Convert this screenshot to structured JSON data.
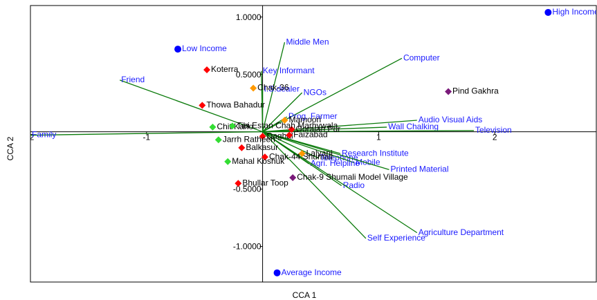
{
  "chart_data": {
    "type": "scatter",
    "x_label": "CCA 1",
    "y_label": "CCA 2",
    "xlim": [
      -2.0,
      2.875
    ],
    "ylim": [
      -1.31,
      1.1
    ],
    "xticks": [
      -2,
      -1,
      1,
      2
    ],
    "yticks": [
      {
        "value": 1,
        "label": "1.0000"
      },
      {
        "value": 0.5,
        "label": "0.5000"
      },
      {
        "value": -0.5,
        "label": "-0.5000"
      },
      {
        "value": -1,
        "label": "-1.0000"
      }
    ],
    "series": [
      {
        "color": "#0000ff",
        "marker": "circle",
        "label_color": "#1a1aff",
        "labels": [
          "High Income",
          "Low Income",
          "Average Income"
        ],
        "x": [
          2.46,
          -0.73,
          0.125
        ],
        "values": [
          1.04,
          0.72,
          -1.23
        ]
      },
      {
        "color": "#ff0000",
        "marker": "diamond",
        "label_color": "#000000",
        "labels": [
          "Koterra",
          "Thowa Bahadur",
          "Balkasur",
          "Bhullar Toop",
          "Chak-44 Shumali",
          "Goraiah Pur",
          "Daghal",
          "Faizabad"
        ],
        "x": [
          -0.48,
          -0.52,
          -0.18,
          -0.21,
          0.02,
          0.25,
          0.0,
          0.23
        ],
        "values": [
          0.54,
          0.23,
          -0.14,
          -0.45,
          -0.22,
          0.02,
          -0.04,
          -0.03
        ]
      },
      {
        "color": "#ff9900",
        "marker": "diamond",
        "label_color": "#000000",
        "labels": [
          "Chak-36",
          "Lalyani",
          "Mamoori"
        ],
        "x": [
          -0.08,
          0.34,
          0.19
        ],
        "values": [
          0.38,
          -0.19,
          0.1
        ]
      },
      {
        "color": "#33dd33",
        "marker": "diamond",
        "label_color": "#000000",
        "labels": [
          "Chit Karlo",
          "Tibi Estan Chah Marhywala",
          "Jarrh Ratheen",
          "Mahal Koshuk"
        ],
        "x": [
          -0.43,
          -0.26,
          -0.38,
          -0.3
        ],
        "values": [
          0.04,
          0.05,
          -0.07,
          -0.26
        ]
      },
      {
        "color": "#7a1a7a",
        "marker": "diamond",
        "label_color": "#000000",
        "labels": [
          "Pind Gakhra",
          "Chak-9 Shumali Model Village"
        ],
        "x": [
          1.6,
          0.26
        ],
        "values": [
          0.35,
          -0.4
        ]
      }
    ],
    "vectors": {
      "color": "#0a7a0a",
      "label_color": "#1a1aff",
      "labels": [
        "Family",
        "Friend",
        "Middle Men",
        "Key Informant",
        "I.S.dealer",
        "NGOs",
        "Computer",
        "Prog. Farmer",
        "Audio Visual Aids",
        "Wall Chalking",
        "Television",
        "Research Institute",
        "Telephone",
        "Mobile",
        "Printed Material",
        "Agri. Helpline",
        "Radio",
        "Agriculture Department",
        "Self Experience"
      ],
      "x": [
        -2.0,
        -1.23,
        0.19,
        -0.01,
        0.0,
        0.34,
        1.2,
        0.21,
        1.33,
        1.07,
        1.82,
        0.67,
        0.48,
        0.79,
        1.09,
        0.4,
        0.68,
        1.33,
        0.89
      ],
      "values": [
        -0.03,
        0.45,
        0.78,
        0.53,
        0.37,
        0.34,
        0.64,
        0.13,
        0.1,
        0.04,
        0.01,
        -0.19,
        -0.23,
        -0.27,
        -0.33,
        -0.28,
        -0.47,
        -0.88,
        -0.93
      ]
    }
  }
}
